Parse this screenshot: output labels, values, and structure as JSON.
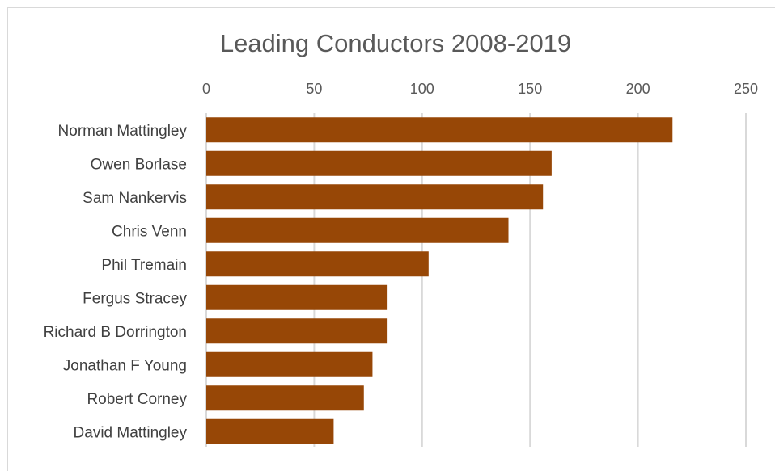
{
  "chart_data": {
    "type": "bar",
    "orientation": "horizontal",
    "title": "Leading Conductors 2008-2019",
    "xlabel": "",
    "ylabel": "",
    "categories": [
      "Norman Mattingley",
      "Owen Borlase",
      "Sam Nankervis",
      "Chris Venn",
      "Phil Tremain",
      "Fergus Stracey",
      "Richard B Dorrington",
      "Jonathan F Young",
      "Robert Corney",
      "David Mattingley"
    ],
    "values": [
      216,
      160,
      156,
      140,
      103,
      84,
      84,
      77,
      73,
      59
    ],
    "xlim": [
      0,
      250
    ],
    "x_ticks": [
      0,
      50,
      100,
      150,
      200,
      250
    ],
    "x_tick_labels": [
      "0",
      "50",
      "100",
      "150",
      "200",
      "250"
    ],
    "x_axis_position": "top",
    "grid": true,
    "legend": "none",
    "bar_color": "#974706",
    "grid_color": "#d9d9d9"
  }
}
